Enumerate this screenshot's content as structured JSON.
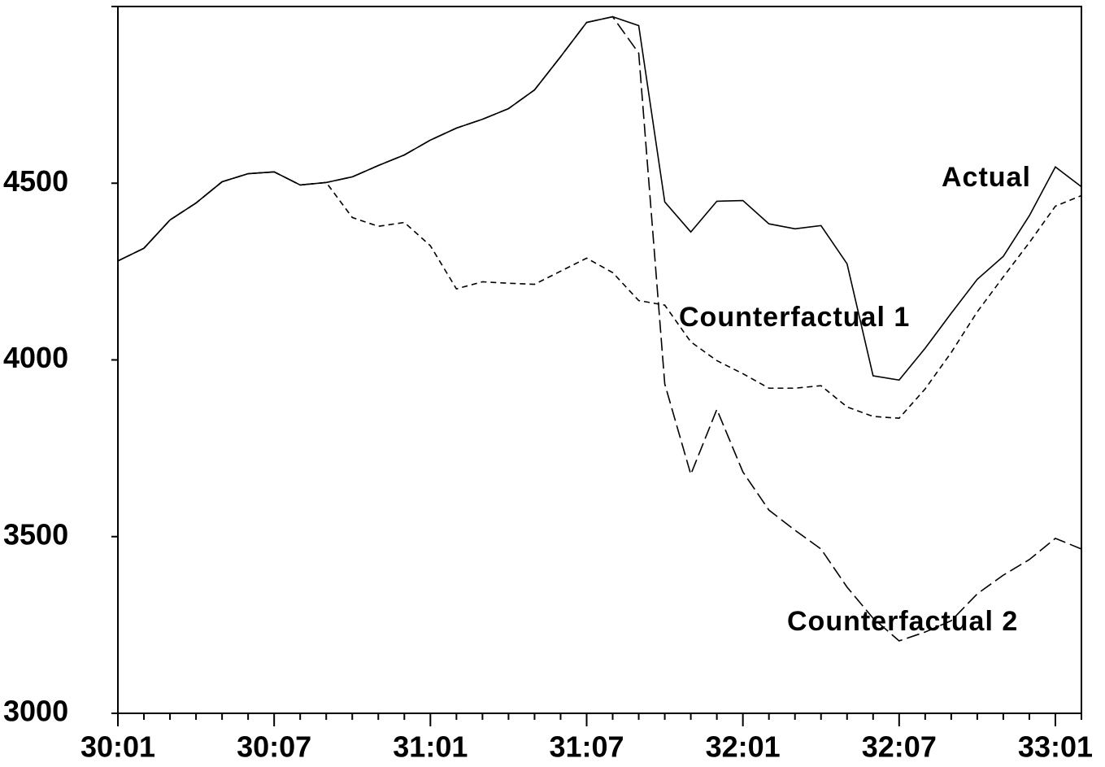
{
  "chart_data": {
    "type": "line",
    "categories": [
      "30:01",
      null,
      null,
      null,
      null,
      null,
      "30:07",
      null,
      null,
      null,
      null,
      null,
      "31:01",
      null,
      null,
      null,
      null,
      null,
      "31:07",
      null,
      null,
      null,
      null,
      null,
      "32:01",
      null,
      null,
      null,
      null,
      null,
      "32:07",
      null,
      null,
      null,
      null,
      null,
      "33:01",
      null
    ],
    "series": [
      {
        "name": "Actual",
        "color": "#000000",
        "style": "solid",
        "values": [
          4280,
          4316,
          4396,
          4444,
          4504,
          4527,
          4532,
          4495,
          4502,
          4518,
          4550,
          4580,
          4622,
          4656,
          4681,
          4711,
          4764,
          4858,
          4955,
          4971,
          4946,
          4447,
          4362,
          4449,
          4451,
          4385,
          4371,
          4380,
          4272,
          3955,
          3943,
          4033,
          4132,
          4228,
          4293,
          4408,
          4546,
          4490
        ]
      },
      {
        "name": "Counterfactual 1",
        "color": "#000000",
        "style": "short-dash",
        "values": [
          4280,
          4316,
          4396,
          4444,
          4504,
          4527,
          4532,
          4495,
          4502,
          4403,
          4378,
          4389,
          4323,
          4201,
          4221,
          4217,
          4214,
          4251,
          4288,
          4247,
          4168,
          4155,
          4051,
          3998,
          3961,
          3920,
          3920,
          3927,
          3867,
          3840,
          3835,
          3918,
          4021,
          4136,
          4235,
          4332,
          4435,
          4465
        ]
      },
      {
        "name": "Counterfactual 2",
        "color": "#000000",
        "style": "long-dash",
        "values": [
          4280,
          4316,
          4396,
          4444,
          4504,
          4527,
          4532,
          4495,
          4502,
          4518,
          4550,
          4580,
          4622,
          4656,
          4681,
          4711,
          4764,
          4858,
          4955,
          4971,
          4868,
          3932,
          3676,
          3860,
          3683,
          3575,
          3518,
          3465,
          3357,
          3269,
          3205,
          3230,
          3262,
          3338,
          3391,
          3435,
          3495,
          3465
        ]
      }
    ],
    "ylim": [
      3000,
      5000
    ],
    "yticks": [
      3000,
      3500,
      4000,
      4500
    ]
  }
}
